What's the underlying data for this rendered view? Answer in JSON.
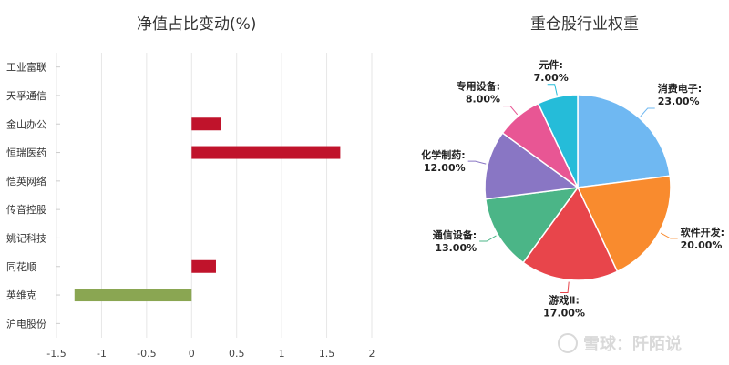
{
  "chart_data": [
    {
      "type": "bar",
      "orientation": "horizontal",
      "title": "净值占比变动(%)",
      "categories": [
        "工业富联",
        "天孚通信",
        "金山办公",
        "恒瑞医药",
        "恺英网络",
        "传音控股",
        "姚记科技",
        "同花顺",
        "英维克",
        "沪电股份"
      ],
      "values": [
        0,
        0,
        0.33,
        1.65,
        0,
        0,
        0,
        0.27,
        -1.3,
        0
      ],
      "xlim": [
        -1.5,
        2
      ],
      "xticks": [
        "-1.5",
        "-1",
        "-0.5",
        "0",
        "0.5",
        "1",
        "1.5",
        "2"
      ],
      "xtick_values": [
        -1.5,
        -1,
        -0.5,
        0,
        0.5,
        1,
        1.5,
        2
      ],
      "grid": true,
      "colors": {
        "positive": "#c0132b",
        "negative": "#8aa652"
      }
    },
    {
      "type": "pie",
      "title": "重仓股行业权重",
      "slices": [
        {
          "label": "消费电子:",
          "value": 23,
          "text": "23.00%",
          "color": "#6fb8f2"
        },
        {
          "label": "软件开发:",
          "value": 20,
          "text": "20.00%",
          "color": "#f98b2e"
        },
        {
          "label": "游戏Ⅱ:",
          "value": 17,
          "text": "17.00%",
          "color": "#e8454b"
        },
        {
          "label": "通信设备:",
          "value": 13,
          "text": "13.00%",
          "color": "#4bb587"
        },
        {
          "label": "化学制药:",
          "value": 12,
          "text": "12.00%",
          "color": "#8976c4"
        },
        {
          "label": "专用设备:",
          "value": 8,
          "text": "8.00%",
          "color": "#e85694"
        },
        {
          "label": "元件:",
          "value": 7,
          "text": "7.00%",
          "color": "#25bcd9"
        }
      ]
    }
  ],
  "watermark": {
    "text": "雪球：阡陌说",
    "icon": "snowball-logo-icon"
  }
}
